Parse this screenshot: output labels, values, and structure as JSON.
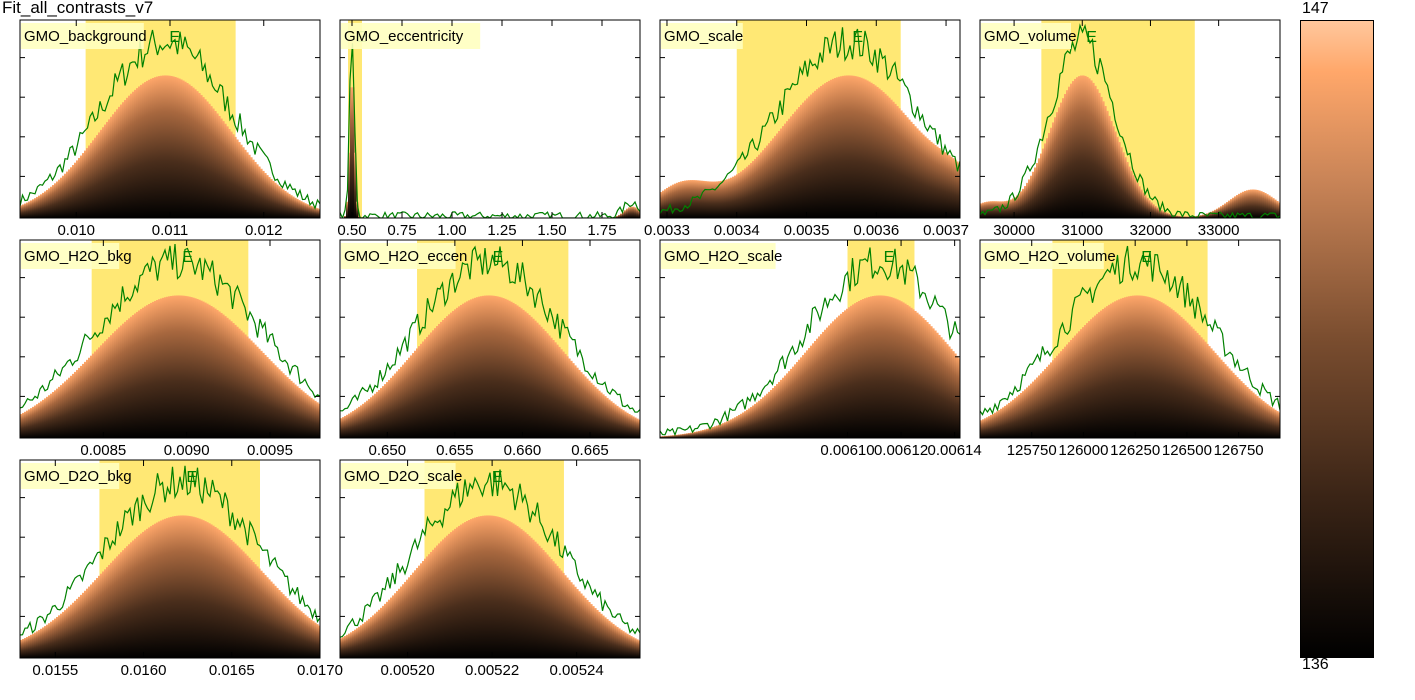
{
  "title": "Fit_all_contrasts_v7",
  "colorbar": {
    "max_label": "147",
    "min_label": "136"
  },
  "colors": {
    "fit_line": "#008000",
    "interval": "#ffe45c",
    "label_box": "#ffffc0",
    "hist_low": "#000000",
    "hist_high": "#ffa76a"
  },
  "chart_data": [
    {
      "type": "area",
      "name": "GMO_background",
      "xlim": [
        0.0094,
        0.0126
      ],
      "xticks": [
        "0.010",
        "0.011",
        "0.012"
      ],
      "xtick_values": [
        0.01,
        0.011,
        0.012
      ],
      "peak": 0.01095,
      "sigma": 0.0007,
      "interval": [
        0.0101,
        0.0117
      ],
      "marker": "E"
    },
    {
      "type": "area",
      "name": "GMO_eccentricity",
      "xlim": [
        0.44,
        1.94
      ],
      "xticks": [
        "0.50",
        "0.75",
        "1.00",
        "1.25",
        "1.50",
        "1.75"
      ],
      "xtick_values": [
        0.5,
        0.75,
        1.0,
        1.25,
        1.5,
        1.75
      ],
      "peak": 0.5,
      "sigma": 0.012,
      "interval": [
        0.48,
        0.55
      ],
      "marker": "E",
      "secondary_bump": 1.9
    },
    {
      "type": "area",
      "name": "GMO_scale",
      "xlim": [
        0.00329,
        0.00372
      ],
      "xticks": [
        "0.0033",
        "0.0034",
        "0.0035",
        "0.0036",
        "0.0037"
      ],
      "xtick_values": [
        0.0033,
        0.0034,
        0.0035,
        0.0036,
        0.0037
      ],
      "peak": 0.00356,
      "sigma": 0.0001,
      "interval": [
        0.0034,
        0.003635
      ],
      "marker": "E"
    },
    {
      "type": "area",
      "name": "GMO_volume",
      "xlim": [
        29500,
        33900
      ],
      "xticks": [
        "30000",
        "31000",
        "32000",
        "33000"
      ],
      "xtick_values": [
        30000,
        31000,
        32000,
        33000
      ],
      "peak": 31000,
      "sigma": 480,
      "interval": [
        30400,
        32650
      ],
      "marker": "E"
    },
    {
      "type": "area",
      "name": "GMO_H2O_bkg",
      "xlim": [
        0.008,
        0.0098
      ],
      "xticks": [
        "0.0085",
        "0.0090",
        "0.0095"
      ],
      "xtick_values": [
        0.0085,
        0.009,
        0.0095
      ],
      "peak": 0.00895,
      "sigma": 0.0005,
      "interval": [
        0.00843,
        0.00937
      ],
      "marker": "E"
    },
    {
      "type": "area",
      "name": "GMO_H2O_eccen",
      "xlim": [
        0.6465,
        0.6687
      ],
      "xticks": [
        "0.650",
        "0.655",
        "0.660",
        "0.665"
      ],
      "xtick_values": [
        0.65,
        0.655,
        0.66,
        0.665
      ],
      "peak": 0.6575,
      "sigma": 0.0055,
      "interval": [
        0.6522,
        0.6634
      ],
      "marker": "E"
    },
    {
      "type": "area",
      "name": "GMO_H2O_scale",
      "xlim": [
        0.00603,
        0.006142
      ],
      "xticks": [
        "0.00610",
        "0.00612",
        "0.00614"
      ],
      "xtick_values": [
        0.0061,
        0.00612,
        0.00614
      ],
      "peak": 0.006112,
      "sigma": 2.75e-05,
      "interval": [
        0.0061,
        0.006125
      ],
      "marker": "E"
    },
    {
      "type": "area",
      "name": "GMO_H2O_volume",
      "xlim": [
        125500,
        126950
      ],
      "xticks": [
        "125750",
        "126000",
        "126250",
        "126500",
        "126750"
      ],
      "xtick_values": [
        125750,
        126000,
        126250,
        126500,
        126750
      ],
      "peak": 126260,
      "sigma": 370,
      "interval": [
        125850,
        126600
      ],
      "marker": "E"
    },
    {
      "type": "area",
      "name": "GMO_D2O_bkg",
      "xlim": [
        0.0153,
        0.017
      ],
      "xticks": [
        "0.0155",
        "0.0160",
        "0.0165",
        "0.0170"
      ],
      "xtick_values": [
        0.0155,
        0.016,
        0.0165,
        0.017
      ],
      "peak": 0.01622,
      "sigma": 0.00045,
      "interval": [
        0.01575,
        0.01666
      ],
      "marker": "E"
    },
    {
      "type": "area",
      "name": "GMO_D2O_scale",
      "xlim": [
        0.005184,
        0.005255
      ],
      "xticks": [
        "0.00520",
        "0.00522",
        "0.00524"
      ],
      "xtick_values": [
        0.0052,
        0.00522,
        0.00524
      ],
      "peak": 0.005219,
      "sigma": 1.75e-05,
      "interval": [
        0.005204,
        0.005237
      ],
      "marker": "E"
    }
  ]
}
